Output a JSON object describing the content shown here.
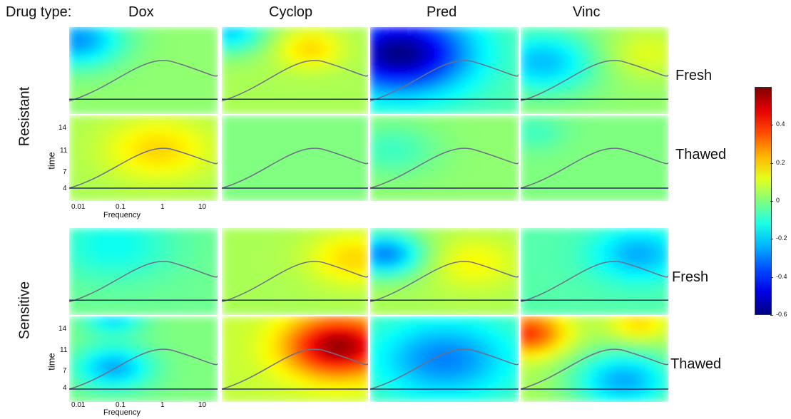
{
  "chart_data": {
    "type": "heatmap",
    "header_label": "Drug type:",
    "drugs": [
      "Dox",
      "Cyclop",
      "Pred",
      "Vinc"
    ],
    "groups": [
      {
        "name": "Resistant",
        "conditions": [
          "Fresh",
          "Thawed"
        ]
      },
      {
        "name": "Sensitive",
        "conditions": [
          "Fresh",
          "Thawed"
        ]
      }
    ],
    "xlabel": "Frequency",
    "ylabel": "time",
    "x_ticks": [
      "0.01",
      "0.1",
      "1",
      "10"
    ],
    "y_ticks": [
      "14",
      "11",
      "7",
      "4"
    ],
    "colorbar": {
      "min": -0.6,
      "max": 0.6,
      "ticks": [
        {
          "value": 0.4,
          "label": "0.4"
        },
        {
          "value": 0.2,
          "label": "0.2"
        },
        {
          "value": 0,
          "label": "0"
        },
        {
          "value": -0.2,
          "label": "-0.2"
        },
        {
          "value": -0.4,
          "label": "-0.4"
        },
        {
          "value": -0.6,
          "label": "-0.6"
        }
      ]
    },
    "panels": [
      {
        "group": "Resistant",
        "condition": "Fresh",
        "drug": "Dox",
        "base": 0.02,
        "blobs": [
          {
            "u": 0.05,
            "v": 0.15,
            "r": 0.3,
            "a": -0.3
          }
        ]
      },
      {
        "group": "Resistant",
        "condition": "Fresh",
        "drug": "Cyclop",
        "base": 0.05,
        "blobs": [
          {
            "u": 0.05,
            "v": 0.05,
            "r": 0.25,
            "a": -0.25
          },
          {
            "u": 0.6,
            "v": 0.25,
            "r": 0.22,
            "a": 0.15
          }
        ]
      },
      {
        "group": "Resistant",
        "condition": "Fresh",
        "drug": "Pred",
        "base": -0.05,
        "blobs": [
          {
            "u": 0.2,
            "v": 0.3,
            "r": 0.45,
            "a": -0.55
          }
        ]
      },
      {
        "group": "Resistant",
        "condition": "Fresh",
        "drug": "Vinc",
        "base": 0.02,
        "blobs": [
          {
            "u": 0.15,
            "v": 0.4,
            "r": 0.35,
            "a": -0.25
          },
          {
            "u": 0.85,
            "v": 0.3,
            "r": 0.3,
            "a": 0.1
          }
        ]
      },
      {
        "group": "Resistant",
        "condition": "Thawed",
        "drug": "Dox",
        "base": 0.05,
        "blobs": [
          {
            "u": 0.6,
            "v": 0.4,
            "r": 0.35,
            "a": 0.15
          }
        ]
      },
      {
        "group": "Resistant",
        "condition": "Thawed",
        "drug": "Cyclop",
        "base": 0.0,
        "blobs": []
      },
      {
        "group": "Resistant",
        "condition": "Thawed",
        "drug": "Pred",
        "base": 0.02,
        "blobs": [
          {
            "u": 0.15,
            "v": 0.4,
            "r": 0.3,
            "a": -0.1
          }
        ]
      },
      {
        "group": "Resistant",
        "condition": "Thawed",
        "drug": "Vinc",
        "base": 0.0,
        "blobs": [
          {
            "u": 0.1,
            "v": 0.2,
            "r": 0.2,
            "a": -0.08
          }
        ]
      },
      {
        "group": "Sensitive",
        "condition": "Fresh",
        "drug": "Dox",
        "base": -0.02,
        "blobs": [
          {
            "u": 0.3,
            "v": 0.2,
            "r": 0.4,
            "a": -0.12
          }
        ]
      },
      {
        "group": "Sensitive",
        "condition": "Fresh",
        "drug": "Cyclop",
        "base": 0.05,
        "blobs": [
          {
            "u": 0.9,
            "v": 0.35,
            "r": 0.3,
            "a": 0.15
          }
        ]
      },
      {
        "group": "Sensitive",
        "condition": "Fresh",
        "drug": "Pred",
        "base": 0.05,
        "blobs": [
          {
            "u": 0.1,
            "v": 0.3,
            "r": 0.25,
            "a": -0.35
          },
          {
            "u": 0.7,
            "v": 0.4,
            "r": 0.3,
            "a": 0.1
          }
        ]
      },
      {
        "group": "Sensitive",
        "condition": "Fresh",
        "drug": "Vinc",
        "base": -0.05,
        "blobs": [
          {
            "u": 0.8,
            "v": 0.3,
            "r": 0.3,
            "a": -0.2
          }
        ]
      },
      {
        "group": "Sensitive",
        "condition": "Thawed",
        "drug": "Dox",
        "base": 0.0,
        "blobs": [
          {
            "u": 0.3,
            "v": 0.6,
            "r": 0.25,
            "a": -0.25
          },
          {
            "u": 0.3,
            "v": 0.0,
            "r": 0.2,
            "a": -0.2
          }
        ]
      },
      {
        "group": "Sensitive",
        "condition": "Thawed",
        "drug": "Cyclop",
        "base": 0.08,
        "blobs": [
          {
            "u": 0.8,
            "v": 0.35,
            "r": 0.35,
            "a": 0.5
          }
        ]
      },
      {
        "group": "Sensitive",
        "condition": "Thawed",
        "drug": "Pred",
        "base": -0.05,
        "blobs": [
          {
            "u": 0.5,
            "v": 0.5,
            "r": 0.45,
            "a": -0.25
          }
        ]
      },
      {
        "group": "Sensitive",
        "condition": "Thawed",
        "drug": "Vinc",
        "base": 0.05,
        "blobs": [
          {
            "u": 0.05,
            "v": 0.2,
            "r": 0.25,
            "a": 0.35
          },
          {
            "u": 0.7,
            "v": 0.75,
            "r": 0.35,
            "a": -0.3
          },
          {
            "u": 0.8,
            "v": 0.1,
            "r": 0.2,
            "a": 0.15
          }
        ]
      }
    ]
  }
}
